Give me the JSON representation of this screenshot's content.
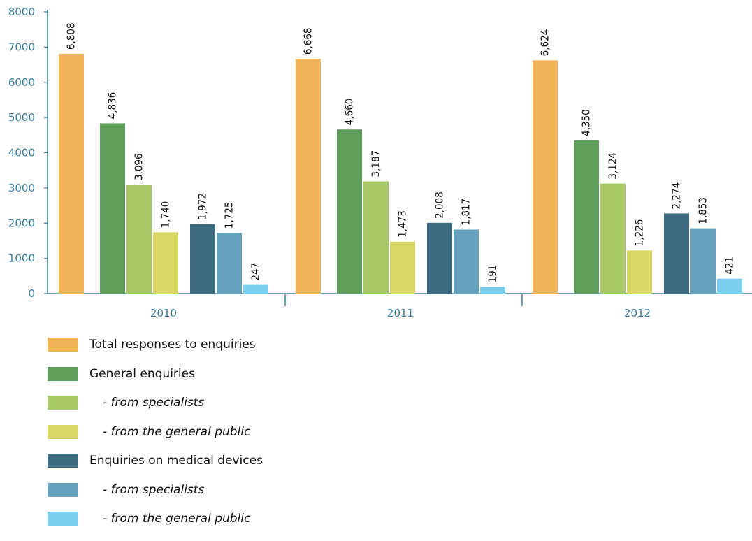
{
  "chart_data": {
    "type": "bar",
    "categories": [
      "2010",
      "2011",
      "2012"
    ],
    "ylim": [
      0,
      8000
    ],
    "yticks": [
      "0",
      "1000",
      "2000",
      "3000",
      "4000",
      "5000",
      "6000",
      "7000",
      "8000"
    ],
    "grid": false,
    "legend_placement": "bottom-left",
    "series": [
      {
        "name": "Total responses to enquiries",
        "sub": false,
        "color": "#f0b55a",
        "values": [
          6808,
          6668,
          6624
        ],
        "labels": [
          "6,808",
          "6,668",
          "6,624"
        ]
      },
      {
        "name": "General enquiries",
        "sub": false,
        "color": "#5e9e5a",
        "values": [
          4836,
          4660,
          4350
        ],
        "labels": [
          "4,836",
          "4,660",
          "4,350"
        ]
      },
      {
        "name": "- from specialists",
        "sub": true,
        "color": "#a8c766",
        "values": [
          3096,
          3187,
          3124
        ],
        "labels": [
          "3,096",
          "3,187",
          "3,124"
        ]
      },
      {
        "name": "- from the general public",
        "sub": true,
        "color": "#d9d765",
        "values": [
          1740,
          1473,
          1226
        ],
        "labels": [
          "1,740",
          "1,473",
          "1,226"
        ]
      },
      {
        "name": "Enquiries on medical devices",
        "sub": false,
        "color": "#3f6b80",
        "values": [
          1972,
          2008,
          2274
        ],
        "labels": [
          "1,972",
          "2,008",
          "2,274"
        ]
      },
      {
        "name": "- from specialists",
        "sub": true,
        "color": "#67a2bd",
        "values": [
          1725,
          1817,
          1853
        ],
        "labels": [
          "1,725",
          "1,817",
          "1,853"
        ]
      },
      {
        "name": "- from the general public",
        "sub": true,
        "color": "#7dcdec",
        "values": [
          247,
          191,
          421
        ],
        "labels": [
          "247",
          "191",
          "421"
        ]
      }
    ]
  },
  "colors": {
    "axis": "#3a7d9a"
  }
}
